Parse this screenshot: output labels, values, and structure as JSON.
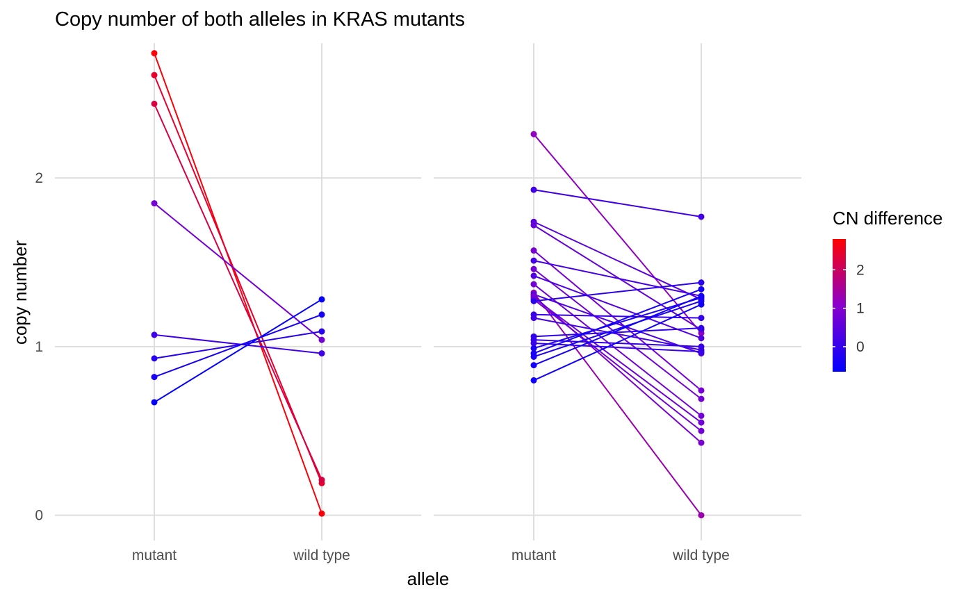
{
  "chart_data": {
    "type": "line",
    "title": "Copy number of both alleles in KRAS mutants",
    "xlabel": "allele",
    "ylabel": "copy number",
    "categories": [
      "mutant",
      "wild type"
    ],
    "ylim": [
      -0.15,
      2.8
    ],
    "yticks": [
      0,
      1,
      2
    ],
    "grid": true,
    "legend": {
      "title": "CN difference",
      "position": "right",
      "ticks": [
        0,
        1,
        2
      ],
      "range": [
        -0.65,
        2.8
      ],
      "low_color": "#0000FF",
      "mid_color": "#8A00CC",
      "high_color": "#FF0000"
    },
    "panels": [
      {
        "pairs": [
          [
            2.74,
            0.01
          ],
          [
            2.61,
            0.19
          ],
          [
            2.44,
            0.21
          ],
          [
            1.85,
            1.04
          ],
          [
            1.07,
            0.96
          ],
          [
            0.93,
            1.09
          ],
          [
            0.82,
            1.19
          ],
          [
            0.67,
            1.28
          ]
        ]
      },
      {
        "pairs": [
          [
            2.26,
            1.08
          ],
          [
            1.93,
            1.77
          ],
          [
            1.74,
            1.28
          ],
          [
            1.72,
            1.1
          ],
          [
            1.57,
            0.74
          ],
          [
            1.51,
            1.3
          ],
          [
            1.46,
            0.69
          ],
          [
            1.42,
            1.05
          ],
          [
            1.37,
            0.59
          ],
          [
            1.32,
            0.0
          ],
          [
            1.31,
            0.96
          ],
          [
            1.3,
            0.43
          ],
          [
            1.29,
            0.55
          ],
          [
            1.28,
            0.5
          ],
          [
            1.27,
            1.38
          ],
          [
            1.19,
            1.17
          ],
          [
            1.17,
            0.98
          ],
          [
            1.06,
            1.11
          ],
          [
            1.04,
            1.0
          ],
          [
            1.02,
            0.97
          ],
          [
            0.99,
            1.29
          ],
          [
            0.96,
            1.34
          ],
          [
            0.94,
            1.27
          ],
          [
            0.89,
            1.3
          ],
          [
            0.8,
            1.25
          ]
        ]
      }
    ]
  }
}
